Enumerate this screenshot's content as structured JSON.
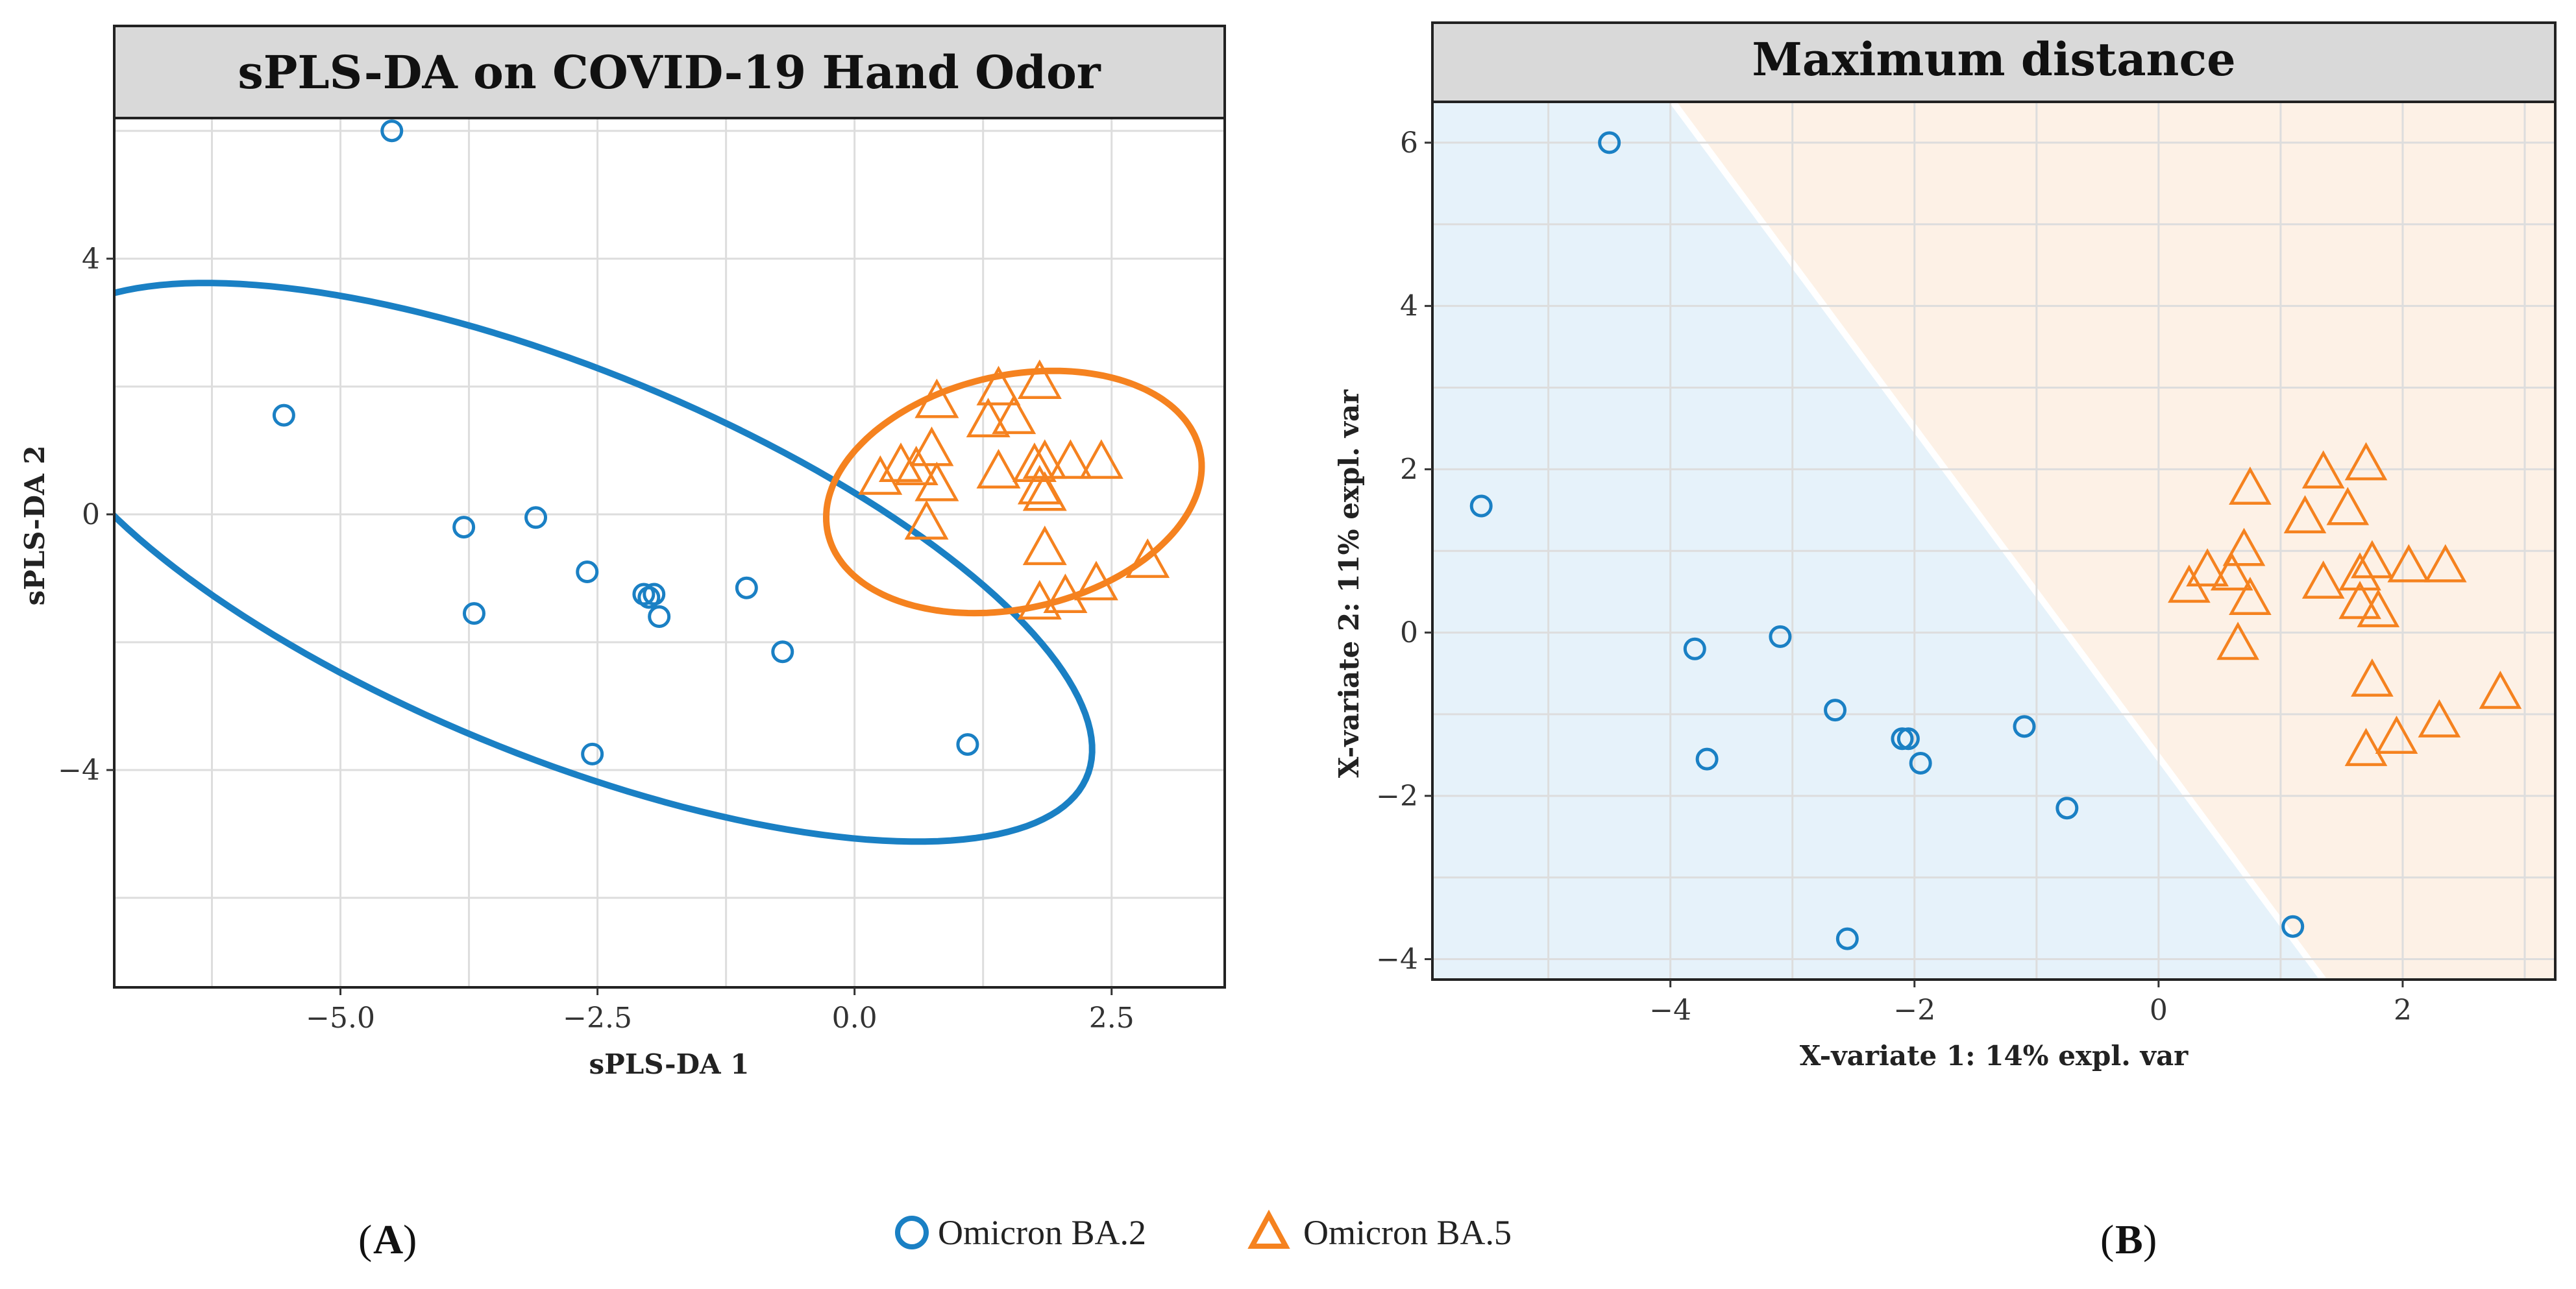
{
  "colors": {
    "ba2": "#1a80c4",
    "ba5": "#f5821f",
    "region_ba2": "#e6f2fa",
    "region_ba5": "#fdf1e6",
    "header_bg": "#d9d9d9",
    "grid": "#dddddd"
  },
  "legend": {
    "ba2_label": "Omicron BA.2",
    "ba5_label": "Omicron BA.5",
    "ba2_icon": "circle-marker-icon",
    "ba5_icon": "triangle-marker-icon"
  },
  "panel_labels": {
    "a": "A",
    "b": "B"
  },
  "chart_data": [
    {
      "type": "scatter",
      "title": "sPLS-DA on COVID-19 Hand Odor",
      "xlabel": "sPLS-DA 1",
      "ylabel": "sPLS-DA 2",
      "xlim": [
        -7.2,
        3.6
      ],
      "ylim": [
        -7.4,
        6.2
      ],
      "xticks": [
        -5.0,
        -2.5,
        0.0,
        2.5
      ],
      "xtick_labels": [
        "−5.0",
        "−2.5",
        "0.0",
        "2.5"
      ],
      "yticks": [
        4,
        0,
        -4
      ],
      "ytick_labels": [
        "4",
        "0",
        "−4"
      ],
      "grid": true,
      "series": [
        {
          "name": "Omicron BA.2",
          "marker": "circle",
          "x": [
            -4.5,
            -5.55,
            -3.8,
            -3.1,
            -2.6,
            -2.05,
            -2.0,
            -1.95,
            -3.7,
            -1.9,
            -1.05,
            -0.7,
            -2.55,
            1.1
          ],
          "y": [
            6.0,
            1.55,
            -0.2,
            -0.05,
            -0.9,
            -1.25,
            -1.3,
            -1.25,
            -1.55,
            -1.6,
            -1.15,
            -2.15,
            -3.75,
            -3.6
          ],
          "ellipse": {
            "cx": -2.85,
            "cy": -0.75,
            "rx": 6.2,
            "ry": 2.7,
            "angle_deg": -38
          }
        },
        {
          "name": "Omicron BA.5",
          "marker": "triangle",
          "x": [
            0.8,
            1.4,
            1.8,
            1.3,
            1.55,
            0.75,
            0.45,
            0.6,
            0.25,
            0.8,
            1.4,
            1.75,
            1.85,
            2.1,
            2.4,
            1.8,
            1.85,
            0.7,
            1.85,
            2.85,
            2.35,
            2.05,
            1.8
          ],
          "y": [
            1.75,
            1.95,
            2.05,
            1.45,
            1.5,
            1.0,
            0.75,
            0.7,
            0.55,
            0.45,
            0.65,
            0.75,
            0.8,
            0.8,
            0.8,
            0.4,
            0.3,
            -0.15,
            -0.55,
            -0.75,
            -1.1,
            -1.3,
            -1.4
          ],
          "ellipse": {
            "cx": 1.55,
            "cy": 0.35,
            "rx": 1.65,
            "ry": 2.05,
            "angle_deg": -40
          }
        }
      ]
    },
    {
      "type": "scatter",
      "title": "Maximum distance",
      "xlabel": "X-variate 1: 14% expl. var",
      "ylabel": "X-variate 2: 11% expl. var",
      "xlim": [
        -5.95,
        3.25
      ],
      "ylim": [
        -4.25,
        6.5
      ],
      "xticks": [
        -4,
        -2,
        0,
        2
      ],
      "xtick_labels": [
        "−4",
        "−2",
        "0",
        "2"
      ],
      "yticks": [
        6,
        4,
        2,
        0,
        -2,
        -4
      ],
      "ytick_labels": [
        "6",
        "4",
        "2",
        "0",
        "−2",
        "−4"
      ],
      "grid": true,
      "decision_boundary": [
        [
          -3.98,
          6.5
        ],
        [
          1.35,
          -4.25
        ]
      ],
      "series": [
        {
          "name": "Omicron BA.2",
          "marker": "circle",
          "x": [
            -4.5,
            -5.55,
            -3.8,
            -3.1,
            -2.65,
            -2.1,
            -2.05,
            -1.95,
            -3.7,
            -1.1,
            -0.75,
            -2.55,
            1.1
          ],
          "y": [
            6.0,
            1.55,
            -0.2,
            -0.05,
            -0.95,
            -1.3,
            -1.3,
            -1.6,
            -1.55,
            -1.15,
            -2.15,
            -3.75,
            -3.6
          ],
          "ellipse": null
        },
        {
          "name": "Omicron BA.5",
          "marker": "triangle",
          "x": [
            0.75,
            1.35,
            1.7,
            1.2,
            1.55,
            0.7,
            0.4,
            0.6,
            0.25,
            0.75,
            1.35,
            1.65,
            1.75,
            2.05,
            2.35,
            1.65,
            1.8,
            0.65,
            1.75,
            2.8,
            2.3,
            1.95,
            1.7
          ],
          "y": [
            1.75,
            1.95,
            2.05,
            1.4,
            1.5,
            1.0,
            0.75,
            0.7,
            0.55,
            0.4,
            0.6,
            0.7,
            0.85,
            0.8,
            0.8,
            0.35,
            0.25,
            -0.15,
            -0.6,
            -0.75,
            -1.1,
            -1.3,
            -1.45
          ],
          "ellipse": null
        }
      ]
    }
  ]
}
